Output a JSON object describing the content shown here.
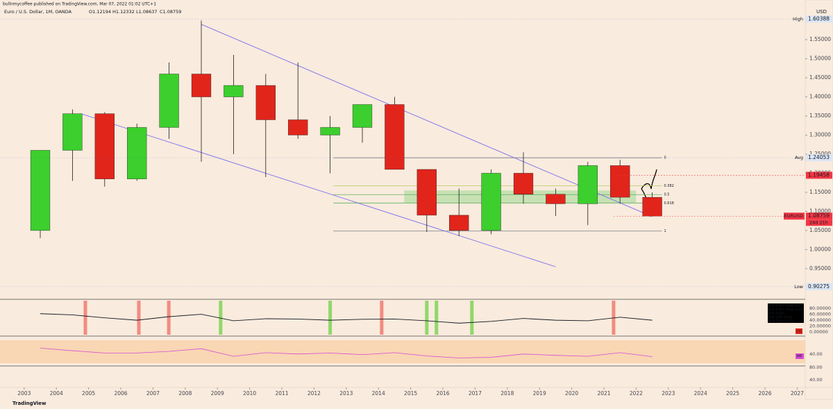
{
  "header": {
    "author_line": "bullnmycoffee published on TradingView.com, Mar 07, 2022 01:02 UTC+1",
    "symbol": "Euro / U.S. Dollar, 1M, OANDA",
    "ohlc": [
      "O1.12194",
      "H1.12332",
      "L1.08637",
      "C1.08759"
    ],
    "currency": "USD"
  },
  "chart_data": {
    "type": "candlestick",
    "x": [
      2003,
      2004,
      2005,
      2006,
      2007,
      2008,
      2009,
      2010,
      2011,
      2012,
      2013,
      2014,
      2015,
      2016,
      2017,
      2018,
      2019,
      2020,
      2021,
      2022
    ],
    "open": [
      1.05,
      1.26,
      1.356,
      1.185,
      1.32,
      1.46,
      1.4,
      1.43,
      1.34,
      1.3,
      1.32,
      1.38,
      1.21,
      1.09,
      1.05,
      1.2,
      1.145,
      1.12,
      1.22,
      1.137
    ],
    "high": [
      1.26,
      1.367,
      1.36,
      1.33,
      1.49,
      1.6,
      1.51,
      1.46,
      1.49,
      1.35,
      1.38,
      1.4,
      1.21,
      1.16,
      1.21,
      1.255,
      1.16,
      1.23,
      1.235,
      1.15
    ],
    "low": [
      1.03,
      1.18,
      1.165,
      1.18,
      1.29,
      1.23,
      1.25,
      1.19,
      1.29,
      1.2,
      1.28,
      1.21,
      1.046,
      1.035,
      1.04,
      1.12,
      1.088,
      1.064,
      1.12,
      1.08637
    ],
    "close": [
      1.26,
      1.356,
      1.185,
      1.32,
      1.46,
      1.4,
      1.43,
      1.34,
      1.3,
      1.32,
      1.38,
      1.21,
      1.09,
      1.05,
      1.2,
      1.145,
      1.12,
      1.22,
      1.137,
      1.08759
    ],
    "up_color": "#3ccf2d",
    "down_color": "#e1251b",
    "xlim": [
      2002.25,
      2027.25
    ],
    "xticks": [
      2003,
      2004,
      2005,
      2006,
      2007,
      2008,
      2009,
      2010,
      2011,
      2012,
      2013,
      2014,
      2015,
      2016,
      2017,
      2018,
      2019,
      2020,
      2021,
      2022,
      2023,
      2024,
      2025,
      2026,
      2027
    ],
    "ylim": [
      0.877,
      1.632
    ],
    "yticks": [
      {
        "value": 0.95,
        "label": "0.95000"
      },
      {
        "value": 1.0,
        "label": "1.00000"
      },
      {
        "value": 1.05,
        "label": "1.05000"
      },
      {
        "value": 1.1,
        "label": "1.10000"
      },
      {
        "value": 1.15,
        "label": "1.15000"
      },
      {
        "value": 1.2,
        "label": "1.20000"
      },
      {
        "value": 1.25,
        "label": "1.25000"
      },
      {
        "value": 1.3,
        "label": "1.30000"
      },
      {
        "value": 1.35,
        "label": "1.35000"
      },
      {
        "value": 1.4,
        "label": "1.40000"
      },
      {
        "value": 1.45,
        "label": "1.45000"
      },
      {
        "value": 1.5,
        "label": "1.50000"
      },
      {
        "value": 1.55,
        "label": "1.55000"
      }
    ],
    "grid": false,
    "trendlines": [
      {
        "x": [
          2008.5,
          2022.4
        ],
        "y": [
          1.59,
          1.09
        ],
        "color": "#7b6ff0"
      },
      {
        "x": [
          2004.8,
          2019.5
        ],
        "y": [
          1.355,
          0.955
        ],
        "color": "#7b6ff0"
      }
    ],
    "fib_levels": [
      {
        "label": "0",
        "value": 1.2405,
        "x": [
          2012.6,
          2022.8
        ],
        "color": "#787b86"
      },
      {
        "label": "0.382",
        "value": 1.167,
        "x": [
          2012.6,
          2022.8
        ],
        "color": "#b5c95a"
      },
      {
        "label": "0.5",
        "value": 1.144,
        "x": [
          2012.6,
          2022.8
        ],
        "color": "#5fae5f"
      },
      {
        "label": "0.618",
        "value": 1.122,
        "x": [
          2012.6,
          2022.8
        ],
        "color": "#5fae5f"
      },
      {
        "label": "1",
        "value": 1.0485,
        "x": [
          2012.6,
          2022.8
        ],
        "color": "#787b86"
      }
    ],
    "zone": {
      "x": [
        2014.8,
        2022.0
      ],
      "y": [
        1.122,
        1.155
      ],
      "color": "#9fd88f"
    },
    "price_labels": [
      {
        "name": "High",
        "value": 1.60388,
        "color": "#2962ff"
      },
      {
        "name": "Avg",
        "value": 1.24053,
        "color": "#2962ff"
      },
      {
        "value": 1.19458,
        "color": "#f23645"
      },
      {
        "name": "EURUSD",
        "value": 1.08759,
        "color": "#f23645",
        "countdown": "24d 21h"
      },
      {
        "name": "Low",
        "value": 0.90275,
        "color": "#2962ff"
      }
    ],
    "oscillator": {
      "values": [
        62,
        58,
        48,
        40,
        52,
        60,
        38,
        45,
        44,
        40,
        43,
        44,
        38,
        30,
        36,
        46,
        40,
        38,
        50,
        40
      ],
      "color": "#131722",
      "ylim": [
        -9,
        106
      ],
      "yticks": [
        {
          "value": 0,
          "label": "0.00000"
        },
        {
          "value": 20,
          "label": "20.00000"
        },
        {
          "value": 40,
          "label": "40.00000"
        },
        {
          "value": 60,
          "label": "60.00000"
        },
        {
          "value": 80,
          "label": "80.00000"
        }
      ],
      "signals": [
        {
          "x": 2004.9,
          "color": "#f28b82"
        },
        {
          "x": 2006.56,
          "color": "#f28b82"
        },
        {
          "x": 2007.49,
          "color": "#f28b82"
        },
        {
          "x": 2009.1,
          "color": "#8fd86a"
        },
        {
          "x": 2012.5,
          "color": "#8fd86a"
        },
        {
          "x": 2014.1,
          "color": "#f28b82"
        },
        {
          "x": 2015.5,
          "color": "#8fd86a"
        },
        {
          "x": 2015.8,
          "color": "#8fd86a"
        },
        {
          "x": 2016.9,
          "color": "#8fd86a"
        },
        {
          "x": 2021.3,
          "color": "#f28b82"
        }
      ],
      "legend": [
        "piv high diag cur",
        "piv high diag prev",
        "piv high",
        "piv low diag",
        "piv low d piv"
      ],
      "badge": "rsi"
    },
    "rsi_pane": {
      "values": [
        70,
        62,
        55,
        55,
        60,
        68,
        45,
        56,
        52,
        55,
        50,
        56,
        46,
        40,
        42,
        52,
        48,
        45,
        56,
        44
      ],
      "color": "#d64bd6",
      "ylim": [
        20,
        100
      ],
      "labels": [
        "40.00",
        "80.00",
        "40.00"
      ],
      "badge": "MF"
    },
    "brand": "TradingView"
  }
}
